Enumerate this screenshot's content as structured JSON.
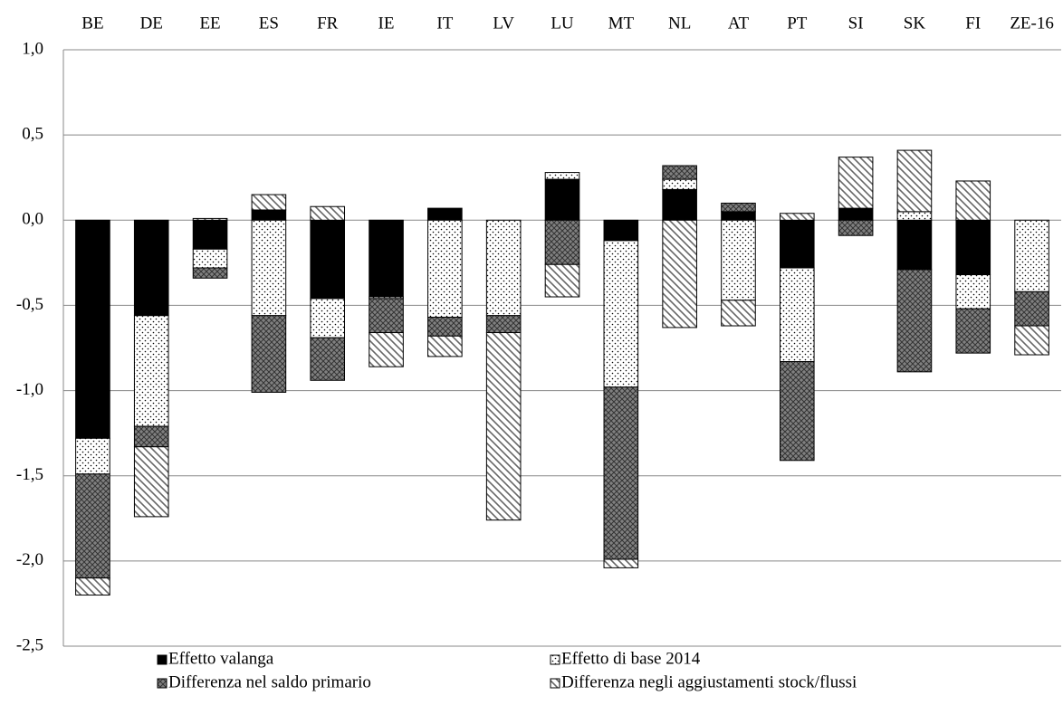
{
  "chart_data": {
    "type": "bar",
    "stacked": true,
    "categories": [
      "BE",
      "DE",
      "EE",
      "ES",
      "FR",
      "IE",
      "IT",
      "LV",
      "LU",
      "MT",
      "NL",
      "AT",
      "PT",
      "SI",
      "SK",
      "FI",
      "ZE-16"
    ],
    "series": [
      {
        "name": "Effetto valanga",
        "color": "#000000",
        "pattern": "solid",
        "values": [
          -1.28,
          -0.56,
          -0.17,
          0.06,
          -0.46,
          -0.45,
          0.07,
          0,
          0.24,
          -0.12,
          0.18,
          0.05,
          -0.28,
          0.07,
          -0.29,
          -0.32,
          0
        ]
      },
      {
        "name": "Effetto di base 2014",
        "color": "#ffffff",
        "pattern": "dots",
        "values": [
          -0.21,
          -0.65,
          -0.11,
          -0.56,
          -0.23,
          -0.01,
          -0.57,
          -0.56,
          0.04,
          -0.86,
          0.06,
          -0.47,
          -0.55,
          0,
          0.05,
          -0.2,
          -0.42
        ]
      },
      {
        "name": "Differenza nel saldo primario",
        "color": "#808080",
        "pattern": "crosshatch",
        "values": [
          -0.61,
          -0.12,
          -0.06,
          -0.45,
          -0.25,
          -0.2,
          -0.11,
          -0.1,
          -0.26,
          -1.01,
          0.08,
          0.05,
          -0.58,
          -0.09,
          -0.6,
          -0.26,
          -0.2
        ]
      },
      {
        "name": "Differenza negli aggiustamenti stock/flussi",
        "color": "#ffffff",
        "pattern": "diagonal",
        "values": [
          -0.1,
          -0.41,
          0.01,
          0.09,
          0.08,
          -0.2,
          -0.12,
          -1.1,
          -0.19,
          -0.05,
          -0.63,
          -0.15,
          0.04,
          0.3,
          0.36,
          0.23,
          -0.17
        ]
      }
    ],
    "ylim": [
      -2.5,
      1.0
    ],
    "yticks": [
      {
        "value": 1.0,
        "label": "1,0"
      },
      {
        "value": 0.5,
        "label": "0,5"
      },
      {
        "value": 0,
        "label": "0,0"
      },
      {
        "value": -0.5,
        "label": "-0,5"
      },
      {
        "value": -1.0,
        "label": "-1,0"
      },
      {
        "value": -1.5,
        "label": "-1,5"
      },
      {
        "value": -2.0,
        "label": "-2,0"
      },
      {
        "value": -2.5,
        "label": "-2,5"
      }
    ],
    "grid": true,
    "legend": "bottom"
  }
}
